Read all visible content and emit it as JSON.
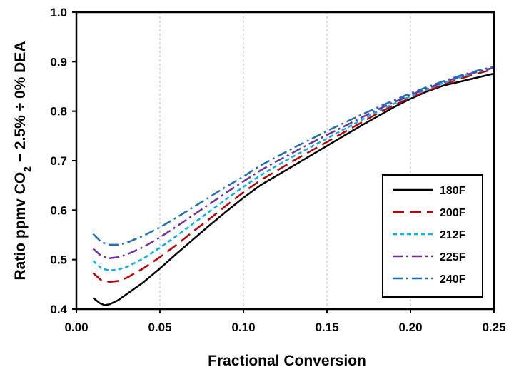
{
  "chart_data": {
    "type": "line",
    "xlabel": "Fractional Conversion",
    "ylabel": {
      "prefix": "Ratio ppmv CO",
      "subscript": "2",
      "suffix": " − 2.5% ÷ 0% DEA"
    },
    "xlim": [
      0,
      0.25
    ],
    "ylim": [
      0.4,
      1.0
    ],
    "xticks": [
      "0.00",
      "0.05",
      "0.10",
      "0.15",
      "0.20",
      "0.25"
    ],
    "yticks": [
      "0.4",
      "0.5",
      "0.6",
      "0.7",
      "0.8",
      "0.9",
      "1.0"
    ],
    "grid": "vertical dashed",
    "legend_position": "bottom-right",
    "series": [
      {
        "name": "180F",
        "color": "#000000",
        "style": "solid",
        "x": [
          0.01,
          0.014,
          0.017,
          0.02,
          0.025,
          0.03,
          0.04,
          0.05,
          0.06,
          0.07,
          0.08,
          0.09,
          0.1,
          0.11,
          0.12,
          0.13,
          0.14,
          0.15,
          0.16,
          0.17,
          0.18,
          0.19,
          0.2,
          0.21,
          0.22,
          0.23,
          0.24,
          0.25
        ],
        "y": [
          0.423,
          0.412,
          0.408,
          0.41,
          0.418,
          0.43,
          0.454,
          0.482,
          0.512,
          0.541,
          0.57,
          0.598,
          0.625,
          0.65,
          0.67,
          0.69,
          0.71,
          0.73,
          0.75,
          0.77,
          0.789,
          0.808,
          0.825,
          0.84,
          0.852,
          0.86,
          0.868,
          0.876
        ]
      },
      {
        "name": "200F",
        "color": "#c00000",
        "style": "long-dash",
        "x": [
          0.01,
          0.015,
          0.02,
          0.025,
          0.03,
          0.04,
          0.05,
          0.06,
          0.07,
          0.08,
          0.09,
          0.1,
          0.11,
          0.12,
          0.13,
          0.14,
          0.15,
          0.16,
          0.17,
          0.18,
          0.19,
          0.2,
          0.21,
          0.22,
          0.23,
          0.24,
          0.25
        ],
        "y": [
          0.473,
          0.458,
          0.455,
          0.457,
          0.463,
          0.482,
          0.505,
          0.53,
          0.557,
          0.583,
          0.61,
          0.636,
          0.66,
          0.68,
          0.7,
          0.719,
          0.738,
          0.757,
          0.776,
          0.795,
          0.812,
          0.827,
          0.841,
          0.854,
          0.866,
          0.876,
          0.885
        ]
      },
      {
        "name": "212F",
        "color": "#00b0f0",
        "style": "short-dash",
        "x": [
          0.01,
          0.015,
          0.02,
          0.025,
          0.03,
          0.04,
          0.05,
          0.06,
          0.07,
          0.08,
          0.09,
          0.1,
          0.11,
          0.12,
          0.13,
          0.14,
          0.15,
          0.16,
          0.17,
          0.18,
          0.19,
          0.2,
          0.21,
          0.22,
          0.23,
          0.24,
          0.25
        ],
        "y": [
          0.498,
          0.482,
          0.478,
          0.48,
          0.485,
          0.502,
          0.524,
          0.548,
          0.573,
          0.598,
          0.623,
          0.647,
          0.67,
          0.69,
          0.709,
          0.727,
          0.745,
          0.763,
          0.781,
          0.799,
          0.815,
          0.83,
          0.844,
          0.857,
          0.869,
          0.879,
          0.887
        ]
      },
      {
        "name": "225F",
        "color": "#7030a0",
        "style": "dash-dot",
        "x": [
          0.01,
          0.015,
          0.02,
          0.025,
          0.03,
          0.04,
          0.05,
          0.06,
          0.07,
          0.08,
          0.09,
          0.1,
          0.11,
          0.12,
          0.13,
          0.14,
          0.15,
          0.16,
          0.17,
          0.18,
          0.19,
          0.2,
          0.21,
          0.22,
          0.23,
          0.24,
          0.25
        ],
        "y": [
          0.522,
          0.507,
          0.503,
          0.505,
          0.51,
          0.525,
          0.545,
          0.567,
          0.59,
          0.613,
          0.636,
          0.658,
          0.68,
          0.699,
          0.717,
          0.735,
          0.752,
          0.769,
          0.786,
          0.803,
          0.818,
          0.833,
          0.846,
          0.859,
          0.87,
          0.88,
          0.888
        ]
      },
      {
        "name": "240F",
        "color": "#1f6fb4",
        "style": "dash-dot",
        "x": [
          0.01,
          0.015,
          0.02,
          0.025,
          0.03,
          0.04,
          0.05,
          0.06,
          0.07,
          0.08,
          0.09,
          0.1,
          0.11,
          0.12,
          0.13,
          0.14,
          0.15,
          0.16,
          0.17,
          0.18,
          0.19,
          0.2,
          0.21,
          0.22,
          0.23,
          0.24,
          0.25
        ],
        "y": [
          0.552,
          0.535,
          0.53,
          0.53,
          0.534,
          0.548,
          0.565,
          0.585,
          0.606,
          0.627,
          0.648,
          0.668,
          0.69,
          0.708,
          0.726,
          0.743,
          0.76,
          0.776,
          0.792,
          0.807,
          0.822,
          0.836,
          0.849,
          0.861,
          0.872,
          0.882,
          0.89
        ]
      }
    ]
  }
}
